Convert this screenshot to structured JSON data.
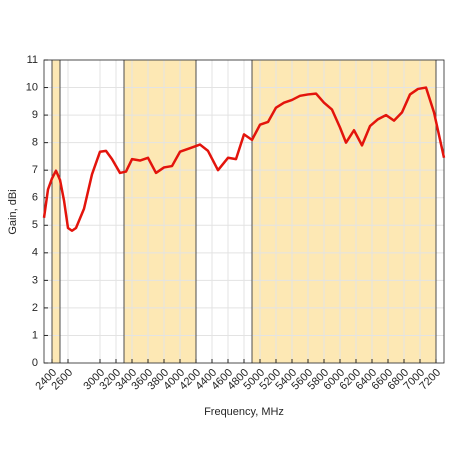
{
  "chart_data": {
    "type": "line",
    "xlabel": "Frequency, MHz",
    "ylabel": "Gain, dBi",
    "x": [
      2300,
      2350,
      2400,
      2450,
      2500,
      2550,
      2600,
      2650,
      2700,
      2800,
      2900,
      3000,
      3075,
      3150,
      3250,
      3325,
      3400,
      3500,
      3600,
      3700,
      3800,
      3900,
      4000,
      4125,
      4250,
      4350,
      4475,
      4600,
      4700,
      4800,
      4900,
      5000,
      5100,
      5200,
      5300,
      5400,
      5500,
      5600,
      5700,
      5800,
      5900,
      6000,
      6075,
      6175,
      6275,
      6375,
      6475,
      6575,
      6675,
      6775,
      6875,
      6975,
      7075,
      7175,
      7300
    ],
    "series": [
      {
        "color": "#e3140c",
        "values": [
          5.27,
          6.3,
          6.7,
          6.98,
          6.65,
          5.9,
          4.9,
          4.8,
          4.9,
          5.6,
          6.85,
          7.67,
          7.7,
          7.4,
          6.9,
          6.95,
          7.4,
          7.35,
          7.45,
          6.9,
          7.1,
          7.15,
          7.67,
          7.8,
          7.93,
          7.7,
          7.0,
          7.45,
          7.4,
          8.3,
          8.1,
          8.65,
          8.75,
          9.27,
          9.45,
          9.55,
          9.7,
          9.75,
          9.78,
          9.45,
          9.2,
          8.55,
          8.0,
          8.45,
          7.9,
          8.6,
          8.85,
          9.0,
          8.8,
          9.1,
          9.75,
          9.95,
          10.0,
          9.1,
          7.45
        ]
      }
    ],
    "bands": [
      [
        2400,
        2500
      ],
      [
        3300,
        4200
      ],
      [
        4900,
        7200
      ]
    ],
    "band_color": "#fde8b4",
    "xlim": [
      2300,
      7300
    ],
    "xticks": [
      2400,
      2600,
      3000,
      3200,
      3400,
      3600,
      3800,
      4000,
      4200,
      4400,
      4600,
      4800,
      5000,
      5200,
      5400,
      5600,
      5800,
      6000,
      6200,
      6400,
      6600,
      6800,
      7000,
      7200
    ],
    "ylim": [
      0,
      11
    ],
    "yticks": [
      0,
      1,
      2,
      3,
      4,
      5,
      6,
      7,
      8,
      9,
      10,
      11
    ],
    "grid": true
  }
}
